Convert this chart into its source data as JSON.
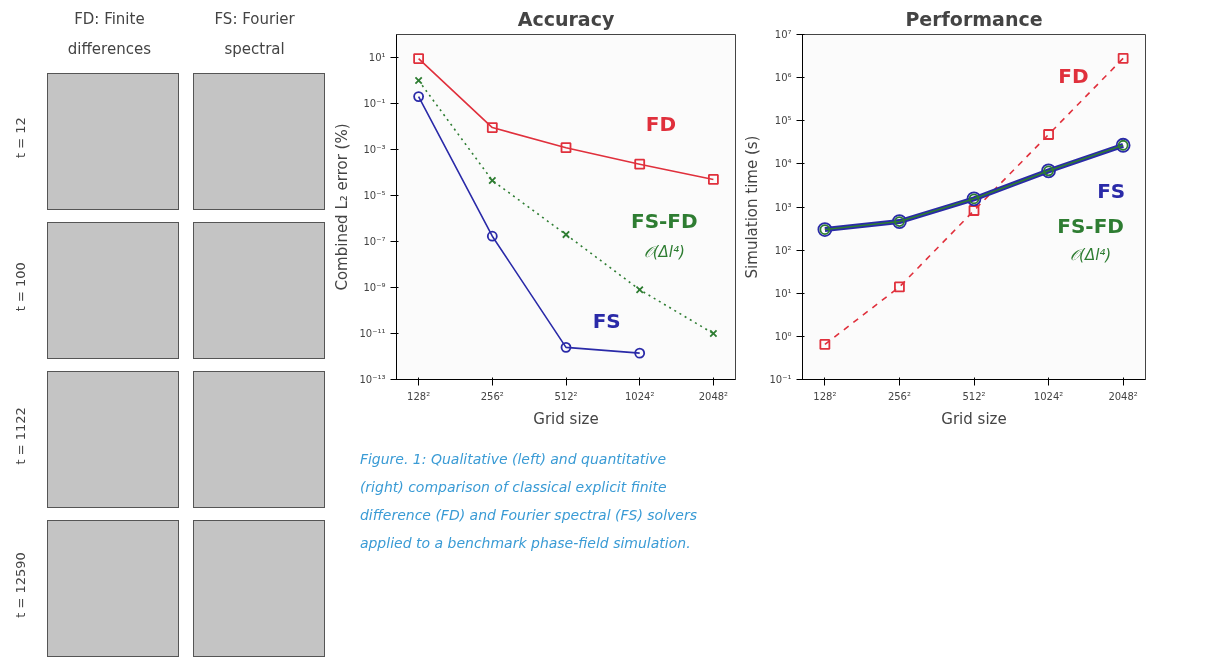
{
  "chart_data": [
    {
      "type": "other",
      "title": "FD: Finite differences",
      "subtitle": "FS: Fourier spectral",
      "annotations": [
        "t = 12",
        "t = 100",
        "t = 1122",
        "t = 12590"
      ]
    },
    {
      "type": "line",
      "title": "Accuracy",
      "xlabel": "Grid size",
      "ylabel": "Combined L₂ error (%)",
      "categories": [
        "128²",
        "256²",
        "512²",
        "1024²",
        "2048²"
      ],
      "log": "y",
      "ylim": [
        1e-13,
        100
      ],
      "yticks": [
        {
          "value": 10,
          "label": "10¹"
        },
        {
          "value": 0.1,
          "label": "10⁻¹"
        },
        {
          "value": 0.001,
          "label": "10⁻³"
        },
        {
          "value": 1e-05,
          "label": "10⁻⁵"
        },
        {
          "value": 1e-07,
          "label": "10⁻⁷"
        },
        {
          "value": 1e-09,
          "label": "10⁻⁹"
        },
        {
          "value": 1e-11,
          "label": "10⁻¹¹"
        },
        {
          "value": 1e-13,
          "label": "10⁻¹³"
        }
      ],
      "grid": false,
      "legend": false,
      "annotations": [
        "𝒪(Δl⁴)"
      ],
      "series": [
        {
          "name": "FD",
          "color": "#e0303c",
          "marker": "square",
          "line_style": "solid",
          "values": [
            9,
            0.009,
            0.0012,
            0.00023,
            5e-05
          ]
        },
        {
          "name": "FS-FD",
          "color": "#2e7d32",
          "marker": "cross",
          "line_style": "dotted",
          "values": [
            1,
            4.5e-05,
            2e-07,
            8e-10,
            1e-11
          ]
        },
        {
          "name": "FS",
          "color": "#2a2aa8",
          "marker": "circle",
          "line_style": "solid",
          "values": [
            0.2,
            1.7e-07,
            2.5e-12,
            1.4e-12,
            null
          ]
        }
      ]
    },
    {
      "type": "line",
      "title": "Performance",
      "xlabel": "Grid size",
      "ylabel": "Simulation time (s)",
      "categories": [
        "128²",
        "256²",
        "512²",
        "1024²",
        "2048²"
      ],
      "log": "y",
      "ylim": [
        0.1,
        10000000.0
      ],
      "yticks": [
        {
          "value": 0.1,
          "label": "10⁻¹"
        },
        {
          "value": 1,
          "label": "10⁰"
        },
        {
          "value": 10,
          "label": "10¹"
        },
        {
          "value": 100,
          "label": "10²"
        },
        {
          "value": 1000,
          "label": "10³"
        },
        {
          "value": 10000,
          "label": "10⁴"
        },
        {
          "value": 100000,
          "label": "10⁵"
        },
        {
          "value": 1000000,
          "label": "10⁶"
        },
        {
          "value": 10000000,
          "label": "10⁷"
        }
      ],
      "grid": false,
      "legend": false,
      "annotations": [
        "𝒪(Δl⁴)"
      ],
      "series": [
        {
          "name": "FD",
          "color": "#e0303c",
          "marker": "square",
          "line_style": "dashed",
          "values": [
            0.65,
            14,
            830,
            48000,
            2800000
          ]
        },
        {
          "name": "FS",
          "color": "#2a2aa8",
          "marker": "circle",
          "line_style": "solid",
          "values": [
            300,
            460,
            1550,
            6900,
            27000
          ]
        },
        {
          "name": "FS-FD",
          "color": "#2e7d32",
          "marker": "circle",
          "line_style": "solid",
          "values": [
            300,
            460,
            1550,
            6900,
            27000
          ]
        }
      ]
    },
    {
      "type": "other",
      "annotations": [
        "Figure. 1: Qualitative (left) and quantitative (right) comparison of classical explicit finite difference (FD) and Fourier spectral (FS) solvers applied to a benchmark phase-field simulation."
      ]
    }
  ]
}
